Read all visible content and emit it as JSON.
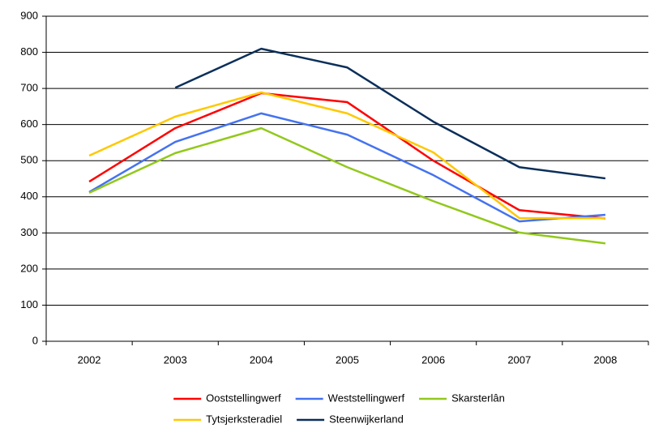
{
  "chart_data": {
    "type": "line",
    "categories": [
      "2002",
      "2003",
      "2004",
      "2005",
      "2006",
      "2007",
      "2008"
    ],
    "series": [
      {
        "name": "Ooststellingwerf",
        "color": "#ff0000",
        "values": [
          442,
          590,
          687,
          662,
          500,
          363,
          340
        ]
      },
      {
        "name": "Weststellingwerf",
        "color": "#4472f0",
        "values": [
          413,
          552,
          631,
          572,
          460,
          332,
          350
        ]
      },
      {
        "name": "Skarsterlân",
        "color": "#92c81c",
        "values": [
          411,
          521,
          590,
          482,
          388,
          301,
          271
        ]
      },
      {
        "name": "Tytsjerksteradiel",
        "color": "#ffc800",
        "values": [
          514,
          622,
          689,
          631,
          523,
          341,
          341
        ]
      },
      {
        "name": "Steenwijkerland",
        "color": "#0b2f5a",
        "values": [
          null,
          702,
          810,
          758,
          608,
          482,
          451
        ]
      }
    ],
    "ylim": [
      0,
      900
    ],
    "yticks": [
      0,
      100,
      200,
      300,
      400,
      500,
      600,
      700,
      800,
      900
    ],
    "grid": true,
    "legend": "bottom"
  }
}
